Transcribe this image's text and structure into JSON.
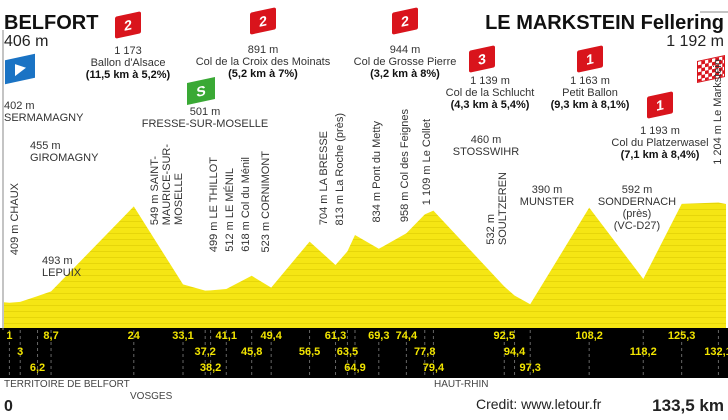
{
  "start": {
    "name": "BELFORT",
    "elevation": "406 m"
  },
  "finish": {
    "name": "LE MARKSTEIN Fellering",
    "elevation": "1 192 m"
  },
  "distance_start": "0",
  "distance_total": "133,5 km",
  "credit": "Credit: www.letour.fr",
  "regions": [
    "TERRITOIRE DE BELFORT",
    "VOSGES",
    "HAUT-RHIN"
  ],
  "colors": {
    "profile": "#f5e614",
    "band": "#000000",
    "km_text": "#f2e500",
    "kom": "#d9141c",
    "sprint": "#3aa935",
    "start": "#1a73c4"
  },
  "climbs": [
    {
      "cat": "2",
      "alt": "1 173",
      "name": "Ballon d'Alsace",
      "detail": "(11,5 km à 5,2%)"
    },
    {
      "cat": "2",
      "alt": "891 m",
      "name": "Col de la Croix des Moinats",
      "detail": "(5,2 km à 7%)"
    },
    {
      "cat": "2",
      "alt": "944 m",
      "name": "Col de Grosse Pierre",
      "detail": "(3,2 km à 8%)"
    },
    {
      "cat": "3",
      "alt": "1 139 m",
      "name": "Col de la Schlucht",
      "detail": "(4,3 km à 5,4%)"
    },
    {
      "cat": "1",
      "alt": "1 163 m",
      "name": "Petit Ballon",
      "detail": "(9,3 km à 8,1%)"
    },
    {
      "cat": "1",
      "alt": "1 193 m",
      "name": "Col du Platzerwasel",
      "detail": "(7,1 km à 8,4%)"
    }
  ],
  "sprint": {
    "icon": "S",
    "alt": "501 m",
    "name": "FRESSE-SUR-MOSELLE"
  },
  "places_h": [
    {
      "alt": "402 m",
      "name": "SERMAMAGNY"
    },
    {
      "alt": "455 m",
      "name": "GIROMAGNY"
    },
    {
      "alt": "493 m",
      "name": "LEPUIX"
    },
    {
      "alt": "460 m",
      "name": "STOSSWIHR"
    },
    {
      "alt": "390 m",
      "name": "MUNSTER"
    },
    {
      "alt": "592 m",
      "name": "SONDERNACH",
      "extra1": "(près)",
      "extra2": "(VC-D27)"
    }
  ],
  "places_v": [
    "409 m CHAUX",
    "549 m SAINT-",
    "MAURICE-SUR-",
    "MOSELLE",
    "499 m LE THILLOT",
    "512 m LE MÉNIL",
    "618 m Col du Ménil",
    "523 m CORNIMONT",
    "704 m LA BRESSE",
    "813 m La Roche (près)",
    "834 m Pont du Metty",
    "958 m Col des Feignes",
    "1 109 m Le Collet",
    "532 m",
    "SOULTZEREN",
    "1 204 m Le Markstein"
  ],
  "chart_data": {
    "type": "area",
    "xlabel": "",
    "ylabel": "",
    "xlim": [
      0,
      133.5
    ],
    "points": [
      [
        0,
        406
      ],
      [
        1,
        402
      ],
      [
        3,
        409
      ],
      [
        6.2,
        455
      ],
      [
        8.7,
        493
      ],
      [
        24,
        1173
      ],
      [
        33.1,
        549
      ],
      [
        37.2,
        499
      ],
      [
        38.2,
        501
      ],
      [
        41.1,
        512
      ],
      [
        45.8,
        618
      ],
      [
        49.4,
        523
      ],
      [
        56.5,
        891
      ],
      [
        61.3,
        704
      ],
      [
        63.5,
        813
      ],
      [
        64.9,
        944
      ],
      [
        69.3,
        834
      ],
      [
        74.4,
        958
      ],
      [
        77.8,
        1109
      ],
      [
        79.4,
        1139
      ],
      [
        92.5,
        532
      ],
      [
        94.4,
        460
      ],
      [
        97.3,
        390
      ],
      [
        108.2,
        1163
      ],
      [
        118.2,
        592
      ],
      [
        125.3,
        1193
      ],
      [
        132.1,
        1204
      ],
      [
        133.5,
        1192
      ]
    ],
    "km_labels": [
      "1",
      "3",
      "6,2",
      "8,7",
      "24",
      "33,1",
      "37,2",
      "38,2",
      "41,1",
      "45,8",
      "49,4",
      "56,5",
      "61,3",
      "63,5",
      "64,9",
      "69,3",
      "74,4",
      "77,8",
      "79,4",
      "92,5",
      "94,4",
      "97,3",
      "108,2",
      "118,2",
      "125,3",
      "132,1"
    ]
  }
}
